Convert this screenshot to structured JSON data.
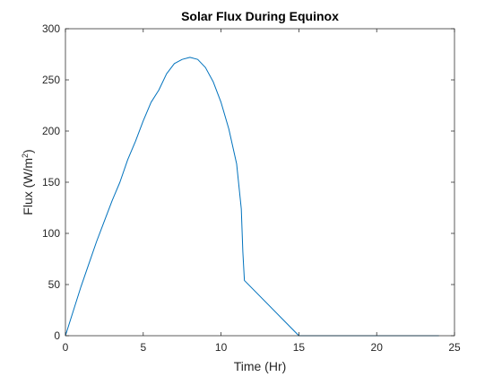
{
  "chart_data": {
    "type": "line",
    "title": "Solar Flux During Equinox",
    "xlabel": "Time (Hr)",
    "ylabel": {
      "prefix": "Flux (W/m",
      "superscript": "2",
      "suffix": ")"
    },
    "xlim": [
      0,
      25
    ],
    "ylim": [
      0,
      300
    ],
    "xticks": [
      0,
      5,
      10,
      15,
      20,
      25
    ],
    "yticks": [
      0,
      50,
      100,
      150,
      200,
      250,
      300
    ],
    "grid": false,
    "series": [
      {
        "color": "#0072BD",
        "x": [
          0,
          0.5,
          1,
          1.5,
          2,
          2.5,
          3,
          3.5,
          4,
          4.5,
          5,
          5.5,
          6,
          6.5,
          7,
          7.5,
          8,
          8.5,
          9,
          9.5,
          10,
          10.5,
          11,
          11.3,
          11.4,
          11.5,
          15,
          20,
          24
        ],
        "y": [
          0,
          24,
          48,
          70,
          92,
          112,
          132,
          150,
          172,
          190,
          210,
          228,
          240,
          256,
          266,
          270,
          272,
          270,
          262,
          248,
          228,
          202,
          168,
          124,
          82,
          54,
          0,
          0,
          0
        ]
      }
    ]
  }
}
